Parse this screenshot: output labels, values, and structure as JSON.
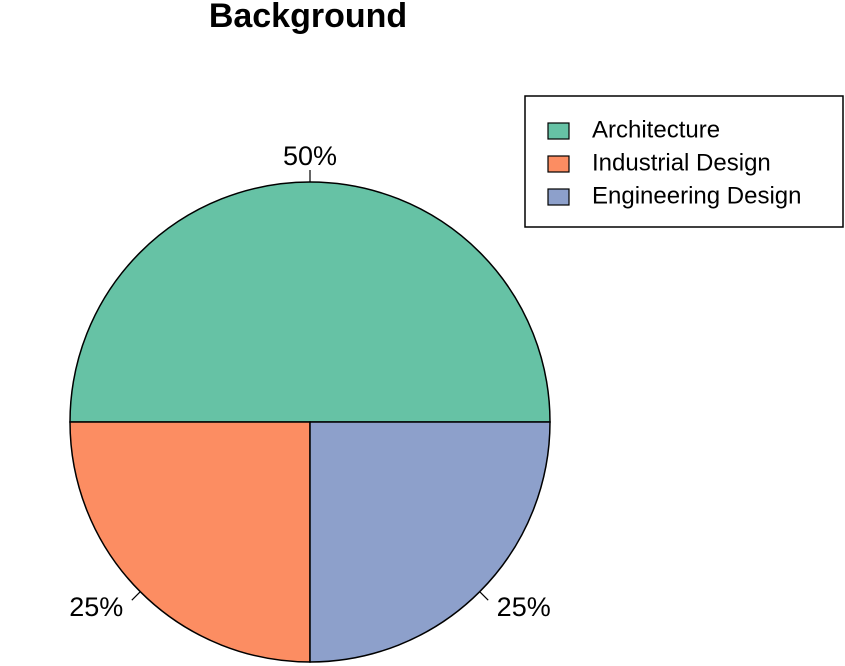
{
  "chart_data": {
    "type": "pie",
    "title": "Background",
    "categories": [
      "Architecture",
      "Industrial Design",
      "Engineering Design"
    ],
    "values": [
      50,
      25,
      25
    ],
    "value_labels": [
      "50%",
      "25%",
      "25%"
    ],
    "colors": [
      "#66c2a5",
      "#fc8d62",
      "#8da0cb"
    ],
    "legend": "top-right"
  }
}
